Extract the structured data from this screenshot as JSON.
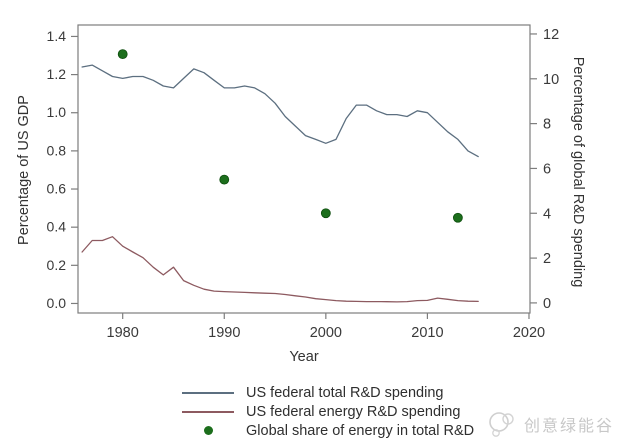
{
  "watermark": {
    "text": "创意绿能谷"
  },
  "legend": {
    "items": [
      "US federal total R&D spending",
      "US federal energy R&D spending",
      "Global share of energy in total R&D"
    ]
  },
  "chart_data": {
    "type": "line",
    "title": "",
    "xlabel": "Year",
    "ylabel_left": "Percentage of US GDP",
    "ylabel_right": "Percentage of global R&D spending",
    "grid": false,
    "legend_position": "bottom",
    "xlim": [
      1975.6,
      2020.1
    ],
    "ylim_left": [
      -0.05,
      1.46
    ],
    "ylim_right": [
      -0.45,
      12.4
    ],
    "x_ticks": {
      "values": [
        1980,
        1990,
        2000,
        2010,
        2020
      ],
      "labels": [
        "1980",
        "1990",
        "2000",
        "2010",
        "2020"
      ]
    },
    "left_ticks": {
      "values": [
        0.0,
        0.2,
        0.4,
        0.6,
        0.8,
        1.0,
        1.2,
        1.4
      ],
      "labels": [
        "0.0",
        "0.2",
        "0.4",
        "0.6",
        "0.8",
        "1.0",
        "1.2",
        "1.4"
      ]
    },
    "right_ticks": {
      "values": [
        0,
        2,
        4,
        6,
        8,
        10,
        12
      ],
      "labels": [
        "0",
        "2",
        "4",
        "6",
        "8",
        "10",
        "12"
      ]
    },
    "series": [
      {
        "name": "US federal total R&D spending",
        "kind": "line",
        "axis": "left",
        "color": "#5c6f80",
        "x": [
          1976,
          1977,
          1978,
          1979,
          1980,
          1981,
          1982,
          1983,
          1984,
          1985,
          1986,
          1987,
          1988,
          1989,
          1990,
          1991,
          1992,
          1993,
          1994,
          1995,
          1996,
          1997,
          1998,
          1999,
          2000,
          2001,
          2002,
          2003,
          2004,
          2005,
          2006,
          2007,
          2008,
          2009,
          2010,
          2011,
          2012,
          2013,
          2014,
          2015
        ],
        "values": [
          1.24,
          1.25,
          1.22,
          1.19,
          1.18,
          1.19,
          1.19,
          1.17,
          1.14,
          1.13,
          1.18,
          1.23,
          1.21,
          1.17,
          1.13,
          1.13,
          1.14,
          1.13,
          1.1,
          1.05,
          0.98,
          0.93,
          0.88,
          0.86,
          0.84,
          0.86,
          0.97,
          1.04,
          1.04,
          1.01,
          0.99,
          0.99,
          0.98,
          1.01,
          1.0,
          0.95,
          0.9,
          0.86,
          0.8,
          0.77
        ]
      },
      {
        "name": "US federal energy R&D spending",
        "kind": "line",
        "axis": "left",
        "color": "#8d5a60",
        "x": [
          1976,
          1977,
          1978,
          1979,
          1980,
          1981,
          1982,
          1983,
          1984,
          1985,
          1986,
          1987,
          1988,
          1989,
          1990,
          1991,
          1992,
          1993,
          1994,
          1995,
          1996,
          1997,
          1998,
          1999,
          2000,
          2001,
          2002,
          2003,
          2004,
          2005,
          2006,
          2007,
          2008,
          2009,
          2010,
          2011,
          2012,
          2013,
          2014,
          2015
        ],
        "values": [
          0.27,
          0.33,
          0.33,
          0.35,
          0.3,
          0.27,
          0.24,
          0.19,
          0.15,
          0.19,
          0.12,
          0.095,
          0.075,
          0.065,
          0.062,
          0.06,
          0.058,
          0.056,
          0.054,
          0.052,
          0.047,
          0.04,
          0.034,
          0.025,
          0.02,
          0.015,
          0.012,
          0.011,
          0.01,
          0.01,
          0.009,
          0.008,
          0.01,
          0.015,
          0.016,
          0.028,
          0.022,
          0.015,
          0.012,
          0.011
        ]
      },
      {
        "name": "Global share of energy in total R&D",
        "kind": "scatter",
        "axis": "right",
        "color": "#1c6e1c",
        "marker": "circle",
        "x": [
          1980,
          1990,
          2000,
          2013
        ],
        "values": [
          11.1,
          5.5,
          4.0,
          3.8
        ]
      }
    ]
  }
}
